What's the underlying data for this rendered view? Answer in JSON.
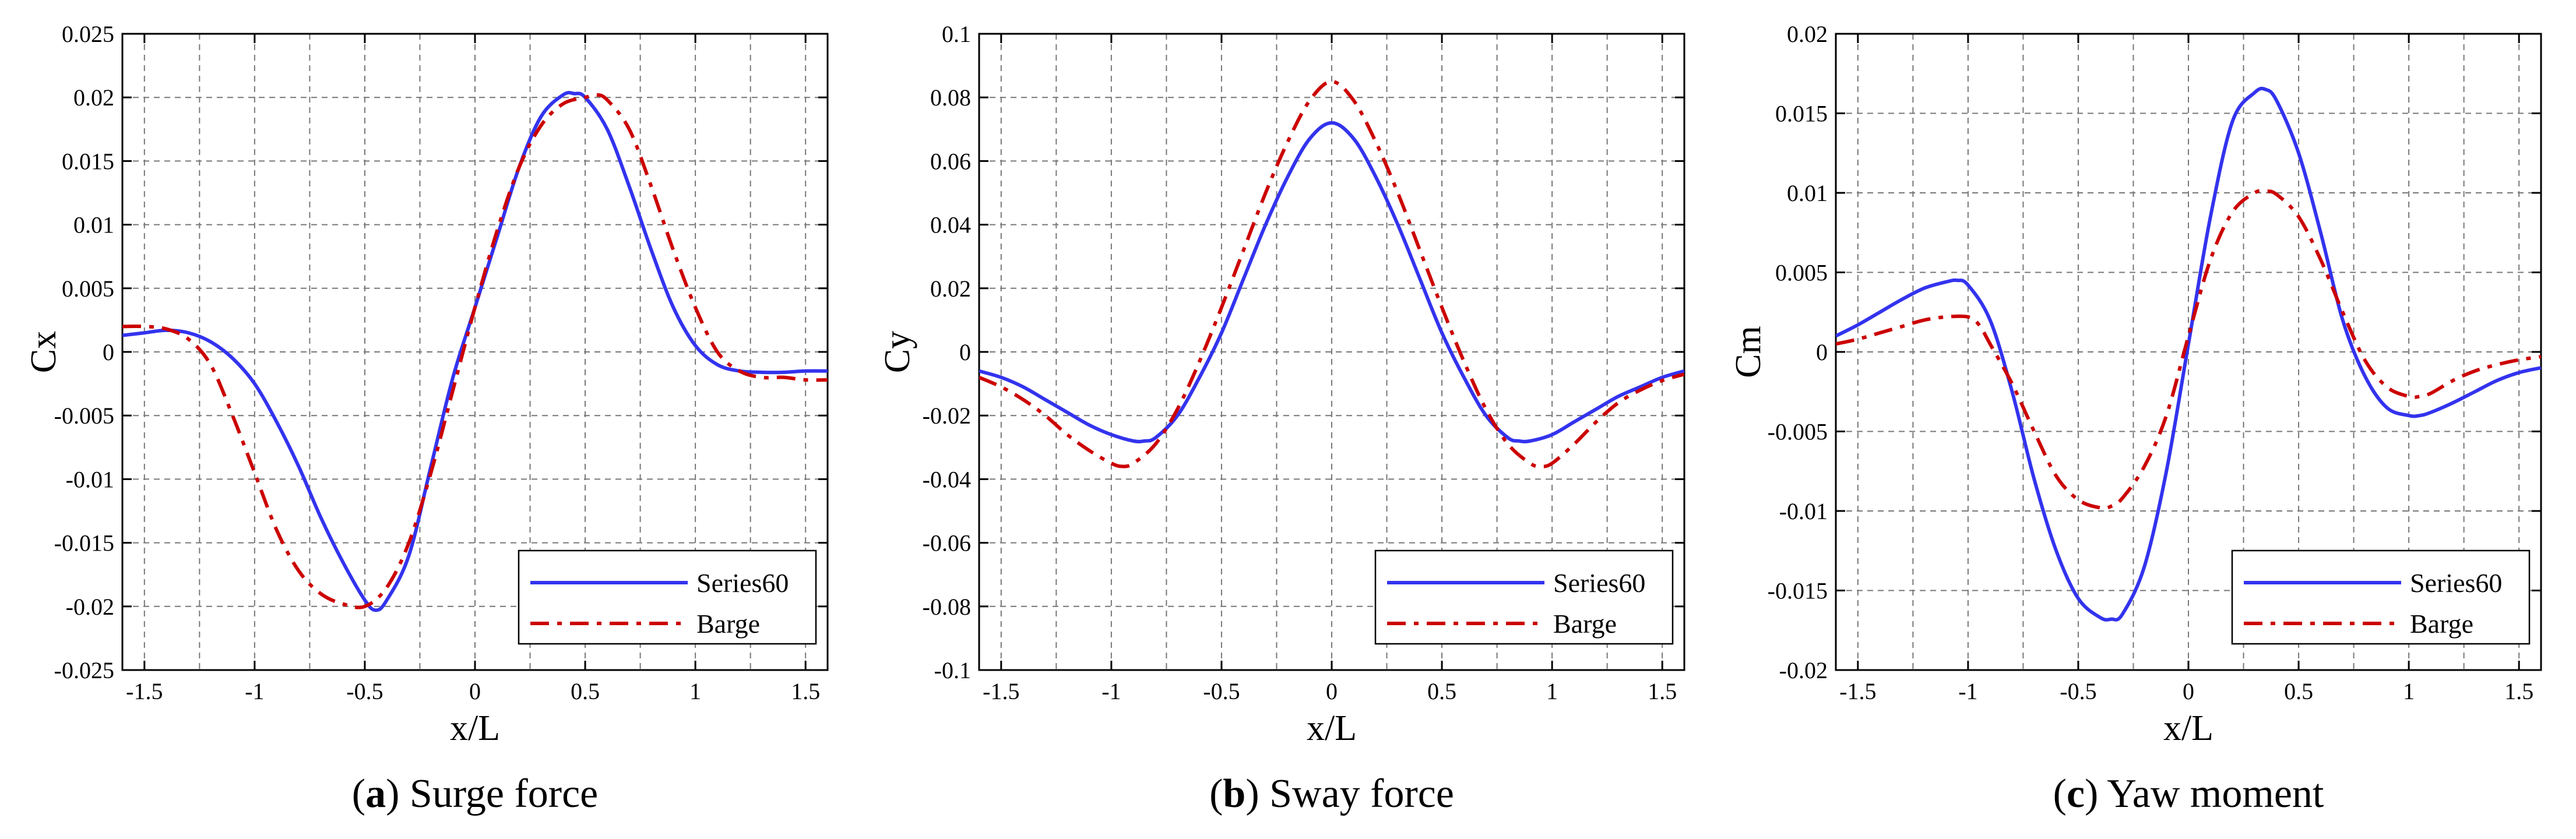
{
  "chart_data": [
    {
      "type": "line",
      "panel_letter": "a",
      "caption": "Surge force",
      "xlabel": "x/L",
      "ylabel": "Cx",
      "xlim": [
        -1.6,
        1.6
      ],
      "ylim": [
        -0.025,
        0.025
      ],
      "x_ticks": [
        -1.5,
        -1,
        -0.5,
        0,
        0.5,
        1,
        1.5
      ],
      "x_tick_labels": [
        "-1.5",
        "-1",
        "-0.5",
        "0",
        "0.5",
        "1",
        "1.5"
      ],
      "x_grid": [
        -1.5,
        -1.25,
        -1,
        -0.75,
        -0.5,
        -0.25,
        0,
        0.25,
        0.5,
        0.75,
        1,
        1.25,
        1.5
      ],
      "y_ticks": [
        -0.025,
        -0.02,
        -0.015,
        -0.01,
        -0.005,
        0,
        0.005,
        0.01,
        0.015,
        0.02,
        0.025
      ],
      "y_tick_labels": [
        "-0.025",
        "-0.02",
        "-0.015",
        "-0.01",
        "-0.005",
        "0",
        "0.005",
        "0.01",
        "0.015",
        "0.02",
        "0.025"
      ],
      "grid": true,
      "legend_position": "bottom-right",
      "series": [
        {
          "name": "Series60",
          "color": "#3333ee",
          "dash": "solid",
          "x": [
            -1.6,
            -1.5,
            -1.4,
            -1.3,
            -1.2,
            -1.1,
            -1.0,
            -0.9,
            -0.8,
            -0.7,
            -0.6,
            -0.5,
            -0.45,
            -0.4,
            -0.3,
            -0.2,
            -0.1,
            0.0,
            0.1,
            0.2,
            0.3,
            0.4,
            0.45,
            0.5,
            0.6,
            0.7,
            0.8,
            0.9,
            1.0,
            1.1,
            1.2,
            1.3,
            1.4,
            1.5,
            1.6
          ],
          "y": [
            0.0013,
            0.0015,
            0.0017,
            0.0015,
            0.0008,
            -0.0005,
            -0.0025,
            -0.0055,
            -0.009,
            -0.013,
            -0.0165,
            -0.0195,
            -0.0203,
            -0.0195,
            -0.016,
            -0.009,
            -0.002,
            0.0035,
            0.009,
            0.0145,
            0.0185,
            0.0202,
            0.0203,
            0.02,
            0.0175,
            0.013,
            0.008,
            0.0035,
            0.0005,
            -0.001,
            -0.0015,
            -0.0016,
            -0.0016,
            -0.0015,
            -0.0015
          ]
        },
        {
          "name": "Barge",
          "color": "#cc0000",
          "dash": "dashdot",
          "x": [
            -1.6,
            -1.5,
            -1.4,
            -1.3,
            -1.2,
            -1.1,
            -1.0,
            -0.9,
            -0.8,
            -0.7,
            -0.6,
            -0.5,
            -0.4,
            -0.3,
            -0.2,
            -0.1,
            0.0,
            0.1,
            0.2,
            0.3,
            0.4,
            0.5,
            0.55,
            0.6,
            0.7,
            0.8,
            0.9,
            1.0,
            1.1,
            1.2,
            1.3,
            1.4,
            1.5,
            1.6
          ],
          "y": [
            0.002,
            0.002,
            0.0018,
            0.001,
            -0.001,
            -0.005,
            -0.0095,
            -0.014,
            -0.0172,
            -0.019,
            -0.0198,
            -0.02,
            -0.0185,
            -0.015,
            -0.0095,
            -0.003,
            0.0035,
            0.0095,
            0.0145,
            0.0178,
            0.0195,
            0.02,
            0.0202,
            0.0198,
            0.0175,
            0.013,
            0.008,
            0.0035,
            0.0,
            -0.0015,
            -0.002,
            -0.002,
            -0.0022,
            -0.0022
          ]
        }
      ]
    },
    {
      "type": "line",
      "panel_letter": "b",
      "caption": "Sway force",
      "xlabel": "x/L",
      "ylabel": "Cy",
      "xlim": [
        -1.6,
        1.6
      ],
      "ylim": [
        -0.1,
        0.1
      ],
      "x_ticks": [
        -1.5,
        -1,
        -0.5,
        0,
        0.5,
        1,
        1.5
      ],
      "x_tick_labels": [
        "-1.5",
        "-1",
        "-0.5",
        "0",
        "0.5",
        "1",
        "1.5"
      ],
      "x_grid": [
        -1.5,
        -1.25,
        -1,
        -0.75,
        -0.5,
        -0.25,
        0,
        0.25,
        0.5,
        0.75,
        1,
        1.25,
        1.5
      ],
      "y_ticks": [
        -0.1,
        -0.08,
        -0.06,
        -0.04,
        -0.02,
        0,
        0.02,
        0.04,
        0.06,
        0.08,
        0.1
      ],
      "y_tick_labels": [
        "-0.1",
        "-0.08",
        "-0.06",
        "-0.04",
        "-0.02",
        "0",
        "0.02",
        "0.04",
        "0.06",
        "0.08",
        "0.1"
      ],
      "grid": true,
      "legend_position": "bottom-right",
      "series": [
        {
          "name": "Series60",
          "color": "#3333ee",
          "dash": "solid",
          "x": [
            -1.6,
            -1.5,
            -1.4,
            -1.3,
            -1.2,
            -1.1,
            -1.0,
            -0.9,
            -0.85,
            -0.8,
            -0.7,
            -0.6,
            -0.5,
            -0.4,
            -0.3,
            -0.2,
            -0.1,
            0.0,
            0.1,
            0.2,
            0.3,
            0.4,
            0.5,
            0.6,
            0.7,
            0.8,
            0.85,
            0.9,
            1.0,
            1.1,
            1.2,
            1.3,
            1.4,
            1.5,
            1.6
          ],
          "y": [
            -0.006,
            -0.008,
            -0.011,
            -0.015,
            -0.019,
            -0.023,
            -0.026,
            -0.028,
            -0.028,
            -0.027,
            -0.02,
            -0.008,
            0.006,
            0.023,
            0.04,
            0.055,
            0.067,
            0.072,
            0.067,
            0.055,
            0.04,
            0.023,
            0.006,
            -0.008,
            -0.02,
            -0.027,
            -0.028,
            -0.028,
            -0.026,
            -0.022,
            -0.018,
            -0.014,
            -0.011,
            -0.008,
            -0.006
          ]
        },
        {
          "name": "Barge",
          "color": "#cc0000",
          "dash": "dashdot",
          "x": [
            -1.6,
            -1.5,
            -1.4,
            -1.3,
            -1.2,
            -1.1,
            -1.0,
            -0.95,
            -0.9,
            -0.8,
            -0.7,
            -0.6,
            -0.5,
            -0.4,
            -0.3,
            -0.2,
            -0.1,
            0.0,
            0.1,
            0.2,
            0.3,
            0.4,
            0.5,
            0.6,
            0.7,
            0.8,
            0.9,
            0.95,
            1.0,
            1.1,
            1.2,
            1.3,
            1.4,
            1.5,
            1.6
          ],
          "y": [
            -0.008,
            -0.011,
            -0.015,
            -0.02,
            -0.026,
            -0.031,
            -0.035,
            -0.036,
            -0.035,
            -0.029,
            -0.018,
            -0.003,
            0.014,
            0.032,
            0.05,
            0.066,
            0.079,
            0.085,
            0.079,
            0.066,
            0.05,
            0.032,
            0.014,
            -0.003,
            -0.018,
            -0.029,
            -0.035,
            -0.036,
            -0.035,
            -0.029,
            -0.022,
            -0.016,
            -0.012,
            -0.009,
            -0.007
          ]
        }
      ]
    },
    {
      "type": "line",
      "panel_letter": "c",
      "caption": "Yaw moment",
      "xlabel": "x/L",
      "ylabel": "Cm",
      "xlim": [
        -1.6,
        1.6
      ],
      "ylim": [
        -0.02,
        0.02
      ],
      "x_ticks": [
        -1.5,
        -1,
        -0.5,
        0,
        0.5,
        1,
        1.5
      ],
      "x_tick_labels": [
        "-1.5",
        "-1",
        "-0.5",
        "0",
        "0.5",
        "1",
        "1.5"
      ],
      "x_grid": [
        -1.5,
        -1.25,
        -1,
        -0.75,
        -0.5,
        -0.25,
        0,
        0.25,
        0.5,
        0.75,
        1,
        1.25,
        1.5
      ],
      "y_ticks": [
        -0.02,
        -0.015,
        -0.01,
        -0.005,
        0,
        0.005,
        0.01,
        0.015,
        0.02
      ],
      "y_tick_labels": [
        "-0.02",
        "-0.015",
        "-0.01",
        "-0.005",
        "0",
        "0.005",
        "0.01",
        "0.015",
        "0.02"
      ],
      "grid": true,
      "legend_position": "bottom-right",
      "series": [
        {
          "name": "Series60",
          "color": "#3333ee",
          "dash": "solid",
          "x": [
            -1.6,
            -1.5,
            -1.4,
            -1.3,
            -1.2,
            -1.1,
            -1.05,
            -1.0,
            -0.9,
            -0.8,
            -0.7,
            -0.6,
            -0.5,
            -0.4,
            -0.35,
            -0.3,
            -0.2,
            -0.1,
            0.0,
            0.1,
            0.2,
            0.3,
            0.35,
            0.4,
            0.5,
            0.6,
            0.7,
            0.8,
            0.9,
            1.0,
            1.05,
            1.1,
            1.2,
            1.3,
            1.4,
            1.5,
            1.6
          ],
          "y": [
            0.001,
            0.0017,
            0.0025,
            0.0033,
            0.004,
            0.0044,
            0.0045,
            0.0042,
            0.002,
            -0.0025,
            -0.008,
            -0.0125,
            -0.0155,
            -0.0167,
            -0.0168,
            -0.0165,
            -0.0135,
            -0.0075,
            0.0005,
            0.0085,
            0.0145,
            0.0163,
            0.0165,
            0.0158,
            0.0125,
            0.0075,
            0.002,
            -0.0015,
            -0.0035,
            -0.004,
            -0.004,
            -0.0038,
            -0.0032,
            -0.0025,
            -0.0018,
            -0.0013,
            -0.001
          ]
        },
        {
          "name": "Barge",
          "color": "#cc0000",
          "dash": "dashdot",
          "x": [
            -1.6,
            -1.5,
            -1.4,
            -1.3,
            -1.2,
            -1.1,
            -1.0,
            -0.95,
            -0.9,
            -0.8,
            -0.7,
            -0.6,
            -0.5,
            -0.4,
            -0.35,
            -0.3,
            -0.2,
            -0.1,
            0.0,
            0.1,
            0.2,
            0.3,
            0.35,
            0.4,
            0.5,
            0.6,
            0.7,
            0.8,
            0.9,
            1.0,
            1.05,
            1.1,
            1.2,
            1.3,
            1.4,
            1.5,
            1.6
          ],
          "y": [
            0.0005,
            0.0008,
            0.0012,
            0.0016,
            0.002,
            0.0022,
            0.0022,
            0.0017,
            0.0005,
            -0.002,
            -0.005,
            -0.0078,
            -0.0093,
            -0.0098,
            -0.0097,
            -0.0092,
            -0.0072,
            -0.004,
            0.001,
            0.0058,
            0.0088,
            0.01,
            0.0101,
            0.0099,
            0.0085,
            0.0058,
            0.0025,
            -0.0005,
            -0.0022,
            -0.0028,
            -0.0028,
            -0.0026,
            -0.0018,
            -0.0012,
            -0.0008,
            -0.0005,
            -0.0003
          ]
        }
      ]
    }
  ]
}
